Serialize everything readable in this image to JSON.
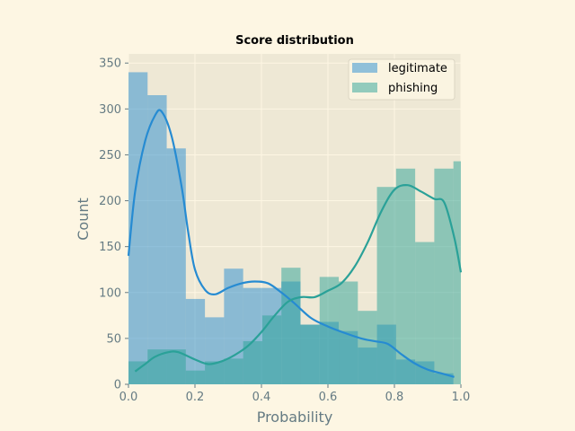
{
  "chart_data": {
    "type": "bar",
    "title": "Score distribution",
    "xlabel": "Probability",
    "ylabel": "Count",
    "xlim": [
      0.0,
      1.0
    ],
    "ylim": [
      0,
      360
    ],
    "xticks": [
      0.0,
      0.2,
      0.4,
      0.6,
      0.8,
      1.0
    ],
    "xtick_labels": [
      "0.0",
      "0.2",
      "0.4",
      "0.6",
      "0.8",
      "1.0"
    ],
    "yticks": [
      0,
      50,
      100,
      150,
      200,
      250,
      300,
      350
    ],
    "ytick_labels": [
      "0",
      "50",
      "100",
      "150",
      "200",
      "250",
      "300",
      "350"
    ],
    "grid": true,
    "legend_position": "top-right",
    "bin_edges": [
      0.0,
      0.0575,
      0.115,
      0.1725,
      0.23,
      0.2875,
      0.345,
      0.4025,
      0.46,
      0.5175,
      0.575,
      0.6325,
      0.69,
      0.7475,
      0.805,
      0.8625,
      0.92,
      0.9775
    ],
    "bin_width": 0.0575,
    "series": [
      {
        "name": "legitimate",
        "color": "#268bd2",
        "opacity": 0.5,
        "counts": [
          340,
          315,
          257,
          93,
          73,
          126,
          105,
          105,
          112,
          65,
          68,
          58,
          40,
          65,
          27,
          25,
          12
        ],
        "kde": [
          [
            0.0,
            140
          ],
          [
            0.02,
            210
          ],
          [
            0.05,
            265
          ],
          [
            0.08,
            293
          ],
          [
            0.1,
            297
          ],
          [
            0.13,
            270
          ],
          [
            0.16,
            215
          ],
          [
            0.18,
            165
          ],
          [
            0.2,
            125
          ],
          [
            0.23,
            103
          ],
          [
            0.26,
            98
          ],
          [
            0.3,
            105
          ],
          [
            0.34,
            110
          ],
          [
            0.38,
            112
          ],
          [
            0.42,
            110
          ],
          [
            0.46,
            100
          ],
          [
            0.5,
            88
          ],
          [
            0.55,
            72
          ],
          [
            0.6,
            63
          ],
          [
            0.65,
            56
          ],
          [
            0.7,
            50
          ],
          [
            0.74,
            47
          ],
          [
            0.78,
            44
          ],
          [
            0.82,
            33
          ],
          [
            0.86,
            23
          ],
          [
            0.9,
            16
          ],
          [
            0.94,
            12
          ],
          [
            0.98,
            8
          ]
        ]
      },
      {
        "name": "phishing",
        "color": "#2aa198",
        "opacity": 0.5,
        "counts": [
          25,
          38,
          38,
          15,
          25,
          28,
          47,
          75,
          127,
          65,
          117,
          112,
          80,
          215,
          235,
          155,
          235,
          243
        ],
        "kde": [
          [
            0.02,
            14
          ],
          [
            0.05,
            22
          ],
          [
            0.08,
            30
          ],
          [
            0.12,
            35
          ],
          [
            0.15,
            35
          ],
          [
            0.2,
            27
          ],
          [
            0.24,
            22
          ],
          [
            0.28,
            25
          ],
          [
            0.32,
            32
          ],
          [
            0.36,
            42
          ],
          [
            0.4,
            57
          ],
          [
            0.44,
            75
          ],
          [
            0.48,
            90
          ],
          [
            0.52,
            95
          ],
          [
            0.56,
            95
          ],
          [
            0.6,
            102
          ],
          [
            0.64,
            110
          ],
          [
            0.68,
            128
          ],
          [
            0.72,
            155
          ],
          [
            0.76,
            188
          ],
          [
            0.8,
            212
          ],
          [
            0.84,
            217
          ],
          [
            0.88,
            210
          ],
          [
            0.92,
            202
          ],
          [
            0.95,
            198
          ],
          [
            0.98,
            160
          ],
          [
            1.0,
            122
          ]
        ]
      }
    ]
  }
}
